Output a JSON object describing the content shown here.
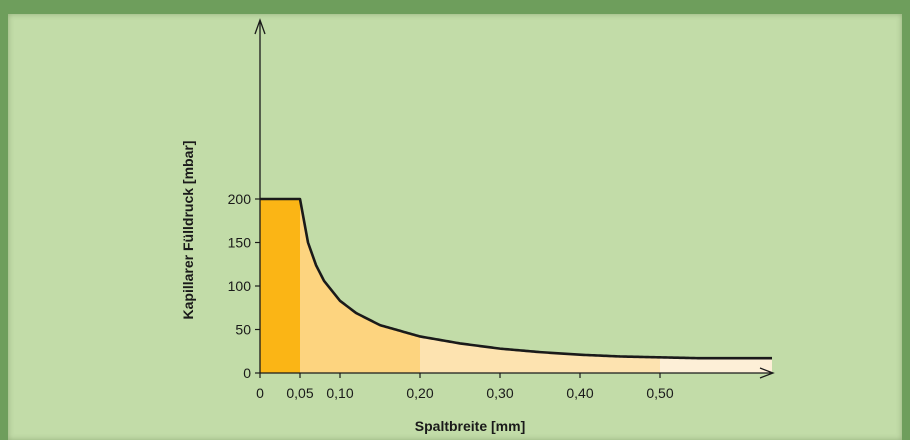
{
  "chart_data": {
    "type": "area",
    "title": "",
    "xlabel": "Spaltbreite [mm]",
    "ylabel": "Kapillarer Fülldruck [mbar]",
    "ylim": [
      0,
      200
    ],
    "y_ticks": [
      {
        "value": 0,
        "label": "0"
      },
      {
        "value": 50,
        "label": "50"
      },
      {
        "value": 100,
        "label": "100"
      },
      {
        "value": 150,
        "label": "150"
      },
      {
        "value": 200,
        "label": "200"
      }
    ],
    "x_ticks": [
      {
        "value": 0,
        "label": "0"
      },
      {
        "value": 0.05,
        "label": "0,05"
      },
      {
        "value": 0.1,
        "label": "0,10"
      },
      {
        "value": 0.2,
        "label": "0,20"
      },
      {
        "value": 0.3,
        "label": "0,30"
      },
      {
        "value": 0.4,
        "label": "0,40"
      },
      {
        "value": 0.5,
        "label": "0,50"
      }
    ],
    "x_end": 0.64,
    "curve": {
      "x": [
        0,
        0.05,
        0.06,
        0.07,
        0.08,
        0.1,
        0.12,
        0.15,
        0.2,
        0.25,
        0.3,
        0.35,
        0.4,
        0.45,
        0.5,
        0.55,
        0.6,
        0.64
      ],
      "y": [
        200,
        200,
        150,
        124,
        106,
        83,
        69,
        55,
        42,
        34,
        28,
        24,
        21,
        19,
        18,
        17,
        17,
        17
      ]
    },
    "regions": [
      {
        "from": 0,
        "to": 0.05,
        "color": "#fbb515"
      },
      {
        "from": 0.05,
        "to": 0.2,
        "color": "#fdd47f"
      },
      {
        "from": 0.2,
        "to": 0.5,
        "color": "#fde3b0"
      },
      {
        "from": 0.5,
        "to": 0.64,
        "color": "#fdefd7"
      }
    ],
    "grid": false
  }
}
